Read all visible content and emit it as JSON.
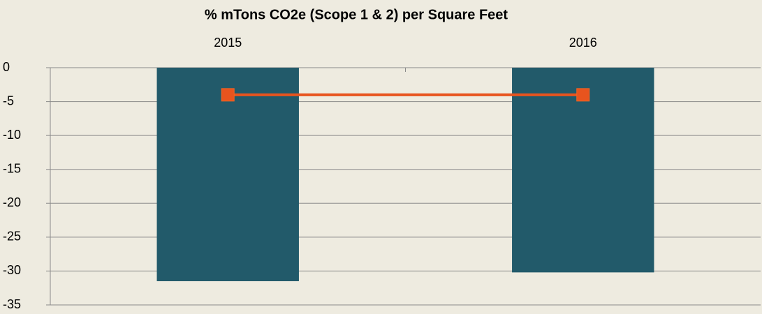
{
  "chart_data": {
    "type": "bar",
    "title": "% mTons CO2e (Scope 1 & 2) per Square Feet",
    "categories": [
      "2015",
      "2016"
    ],
    "series": [
      {
        "type": "bar",
        "color": "#225a6a",
        "values": [
          -31.5,
          -30.2
        ]
      },
      {
        "type": "line",
        "color": "#e8541e",
        "values": [
          -4,
          -4
        ]
      }
    ],
    "ylim": [
      -35,
      0
    ],
    "yticks": [
      0,
      -5,
      -10,
      -15,
      -20,
      -25,
      -30,
      -35
    ],
    "grid": true
  }
}
